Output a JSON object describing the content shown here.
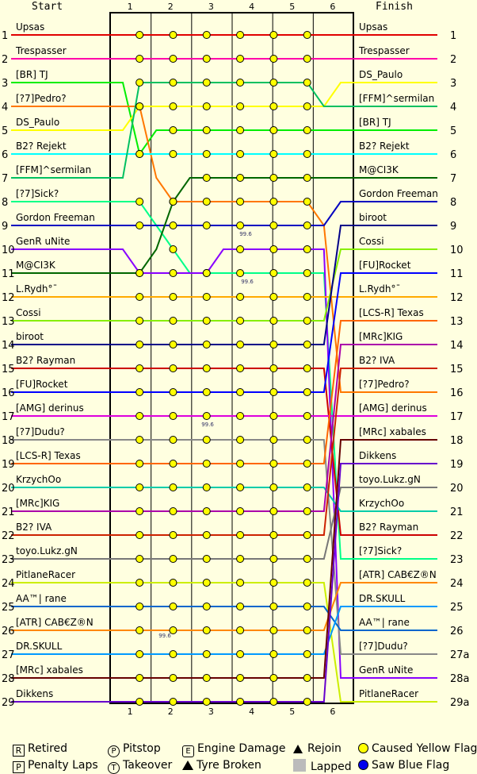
{
  "header": {
    "start": "Start",
    "finish": "Finish"
  },
  "chart_data": {
    "type": "line",
    "title": "",
    "laps": [
      "1",
      "2",
      "3",
      "4",
      "5",
      "6"
    ],
    "positions": [
      1,
      2,
      3,
      4,
      5,
      6,
      7,
      8,
      9,
      10,
      11,
      12,
      13,
      14,
      15,
      16,
      17,
      18,
      19,
      20,
      21,
      22,
      23,
      24,
      25,
      26,
      27,
      28,
      29
    ],
    "finish_position_labels": [
      "1",
      "2",
      "3",
      "4",
      "5",
      "6",
      "7",
      "8",
      "9",
      "10",
      "11",
      "12",
      "13",
      "14",
      "15",
      "16",
      "17",
      "18",
      "19",
      "20",
      "21",
      "22",
      "23",
      "24",
      "25",
      "26",
      "27a",
      "28a",
      "29a"
    ],
    "series": [
      {
        "name": "Upsas",
        "color": "#e00000",
        "positions": [
          1,
          1,
          1,
          1,
          1,
          1,
          1,
          1,
          1,
          1,
          1,
          1,
          1,
          1
        ]
      },
      {
        "name": "Trespasser",
        "color": "#ff00aa",
        "positions": [
          2,
          2,
          2,
          2,
          2,
          2,
          2,
          2,
          2,
          2,
          2,
          2,
          2,
          2
        ]
      },
      {
        "name": "[BR] TJ",
        "color": "#00ee00",
        "positions": [
          3,
          6,
          5,
          5,
          5,
          5,
          5,
          5,
          5,
          5,
          5,
          5,
          5,
          5
        ]
      },
      {
        "name": "[?7]Pedro?",
        "color": "#ff7700",
        "positions": [
          4,
          4,
          7,
          8,
          8,
          8,
          8,
          8,
          8,
          8,
          8,
          8,
          9,
          16
        ]
      },
      {
        "name": "DS_Paulo",
        "color": "#ffff00",
        "positions": [
          5,
          4,
          4,
          4,
          4,
          4,
          4,
          4,
          4,
          4,
          4,
          4,
          4,
          3
        ]
      },
      {
        "name": "B2? Rejekt",
        "color": "#00ffff",
        "positions": [
          6,
          6,
          6,
          6,
          6,
          6,
          6,
          6,
          6,
          6,
          6,
          6,
          6,
          6
        ]
      },
      {
        "name": "[FFM]^sermilan",
        "color": "#00c060",
        "positions": [
          7,
          3,
          3,
          3,
          3,
          3,
          3,
          3,
          3,
          3,
          3,
          3,
          4,
          4
        ]
      },
      {
        "name": "[?7]Sick?",
        "color": "#00ff88",
        "positions": [
          8,
          8,
          9,
          10,
          11,
          11,
          11,
          11,
          11,
          11,
          11,
          11,
          11,
          23
        ]
      },
      {
        "name": "Gordon Freeman",
        "color": "#0000c0",
        "positions": [
          9,
          9,
          9,
          9,
          9,
          9,
          9,
          9,
          9,
          9,
          9,
          9,
          9,
          8
        ]
      },
      {
        "name": "GenR uNite",
        "color": "#8800ff",
        "positions": [
          10,
          11,
          11,
          11,
          11,
          11,
          10,
          10,
          10,
          10,
          10,
          10,
          10,
          28
        ]
      },
      {
        "name": "M@CI3K",
        "color": "#006600",
        "positions": [
          11,
          11,
          10,
          8,
          7,
          7,
          7,
          7,
          7,
          7,
          7,
          7,
          7,
          7
        ]
      },
      {
        "name": "L.Rydh?",
        "color": "#ffaa00",
        "positions": [
          12,
          12,
          12,
          12,
          12,
          12,
          12,
          12,
          12,
          12,
          12,
          12,
          12,
          12
        ]
      },
      {
        "name": "Cossi",
        "color": "#88ee00",
        "positions": [
          13,
          13,
          13,
          13,
          13,
          13,
          13,
          13,
          13,
          13,
          13,
          13,
          13,
          10
        ]
      },
      {
        "name": "biroot",
        "color": "#000088",
        "positions": [
          14,
          14,
          14,
          14,
          14,
          14,
          14,
          14,
          14,
          14,
          14,
          14,
          14,
          9
        ]
      },
      {
        "name": "B2? Rayman",
        "color": "#cc0000",
        "positions": [
          15,
          15,
          15,
          15,
          15,
          15,
          15,
          15,
          15,
          15,
          15,
          15,
          15,
          22
        ]
      },
      {
        "name": "[FU]Rocket",
        "color": "#0000ff",
        "positions": [
          16,
          16,
          16,
          16,
          16,
          16,
          16,
          16,
          16,
          16,
          16,
          16,
          16,
          11
        ]
      },
      {
        "name": "[AMG] derinus",
        "color": "#dd00dd",
        "positions": [
          17,
          17,
          17,
          17,
          17,
          17,
          17,
          17,
          17,
          17,
          17,
          17,
          17,
          17
        ]
      },
      {
        "name": "[?7]Dudu?",
        "color": "#888888",
        "positions": [
          18,
          18,
          18,
          18,
          18,
          18,
          18,
          18,
          18,
          18,
          18,
          18,
          18,
          27
        ]
      },
      {
        "name": "[LCS-R] Texas",
        "color": "#ff6600",
        "positions": [
          19,
          19,
          19,
          19,
          19,
          19,
          19,
          19,
          19,
          19,
          19,
          19,
          19,
          13
        ]
      },
      {
        "name": "KrzychOo",
        "color": "#00ccaa",
        "positions": [
          20,
          20,
          20,
          20,
          20,
          20,
          20,
          20,
          20,
          20,
          20,
          20,
          20,
          21
        ]
      },
      {
        "name": "[MRc]KIG",
        "color": "#aa00aa",
        "positions": [
          21,
          21,
          21,
          21,
          21,
          21,
          21,
          21,
          21,
          21,
          21,
          21,
          21,
          14
        ]
      },
      {
        "name": "B2? IVA",
        "color": "#cc2200",
        "positions": [
          22,
          22,
          22,
          22,
          22,
          22,
          22,
          22,
          22,
          22,
          22,
          22,
          22,
          15
        ]
      },
      {
        "name": "toyo.Lukz.gN",
        "color": "#777777",
        "positions": [
          23,
          23,
          23,
          23,
          23,
          23,
          23,
          23,
          23,
          23,
          23,
          23,
          23,
          20
        ]
      },
      {
        "name": "PitlaneRacer",
        "color": "#ccee00",
        "positions": [
          24,
          24,
          24,
          24,
          24,
          24,
          24,
          24,
          24,
          24,
          24,
          24,
          24,
          29
        ]
      },
      {
        "name": "AA™| rane",
        "color": "#0066cc",
        "positions": [
          25,
          25,
          25,
          25,
          25,
          25,
          25,
          25,
          25,
          25,
          25,
          25,
          25,
          26
        ]
      },
      {
        "name": "[ATR] CAB€Z®N",
        "color": "#ff8800",
        "positions": [
          26,
          26,
          26,
          26,
          26,
          26,
          26,
          26,
          26,
          26,
          26,
          26,
          26,
          24
        ]
      },
      {
        "name": "DR.SKULL",
        "color": "#0099ff",
        "positions": [
          27,
          27,
          27,
          27,
          27,
          27,
          27,
          27,
          27,
          27,
          27,
          27,
          27,
          25
        ]
      },
      {
        "name": "[MRc] xabales",
        "color": "#660000",
        "positions": [
          28,
          28,
          28,
          28,
          28,
          28,
          28,
          28,
          28,
          28,
          28,
          28,
          28,
          18
        ]
      },
      {
        "name": "Dikkens",
        "color": "#6600cc",
        "positions": [
          29,
          29,
          29,
          29,
          29,
          29,
          29,
          29,
          29,
          29,
          29,
          29,
          29,
          19
        ]
      }
    ],
    "start_labels": [
      "Upsas",
      "Trespasser",
      "[BR] TJ",
      "[?7]Pedro?",
      "DS_Paulo",
      "B2? Rejekt",
      "[FFM]^sermilan",
      "[?7]Sick?",
      "Gordon Freeman",
      "GenR uNite",
      "M@CI3K",
      "L.Rydh°¯",
      "Cossi",
      "biroot",
      "B2? Rayman",
      "[FU]Rocket",
      "[AMG] derinus",
      "[?7]Dudu?",
      "[LCS-R] Texas",
      "KrzychOo",
      "[MRc]KIG",
      "B2? IVA",
      "toyo.Lukz.gN",
      "PitlaneRacer",
      "AA™| rane",
      "[ATR] CAB€Z®N",
      "DR.SKULL",
      "[MRc] xabales",
      "Dikkens"
    ],
    "finish_labels": [
      "Upsas",
      "Trespasser",
      "DS_Paulo",
      "[FFM]^sermilan",
      "[BR] TJ",
      "B2? Rejekt",
      "M@CI3K",
      "Gordon Freeman",
      "biroot",
      "Cossi",
      "[FU]Rocket",
      "L.Rydh°¯",
      "[LCS-R] Texas",
      "[MRc]KIG",
      "B2? IVA",
      "[?7]Pedro?",
      "[AMG] derinus",
      "[MRc] xabales",
      "Dikkens",
      "toyo.Lukz.gN",
      "KrzychOo",
      "B2? Rayman",
      "[?7]Sick?",
      "[ATR] CAB€Z®N",
      "DR.SKULL",
      "AA™| rane",
      "[?7]Dudu?",
      "GenR uNite",
      "PitlaneRacer"
    ],
    "annotations": [
      "99.6",
      "99.6",
      "99.6",
      "99.6"
    ]
  },
  "legend": {
    "retired": "Retired",
    "pitstop": "Pitstop",
    "engine": "Engine Damage",
    "rejoin": "Rejoin",
    "yellow": "Caused Yellow Flag",
    "penalty": "Penalty Laps",
    "takeover": "Takeover",
    "tyre": "Tyre Broken",
    "lapped": "Lapped",
    "blue": "Saw Blue Flag",
    "retired_glyph": "R",
    "pitstop_glyph": "P",
    "engine_glyph": "E",
    "penalty_glyph": "P",
    "takeover_glyph": "T"
  }
}
